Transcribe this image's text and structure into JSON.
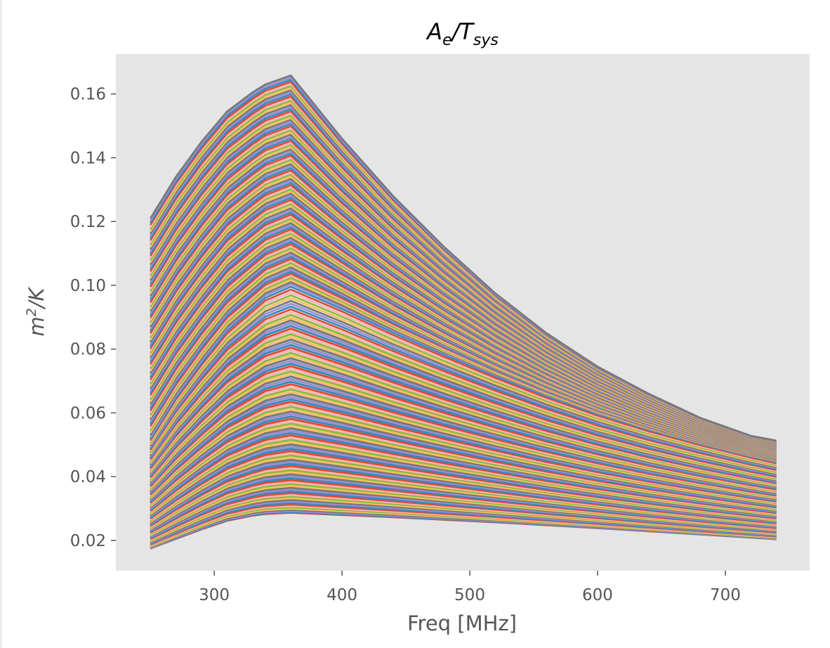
{
  "chart_data": {
    "type": "line",
    "title_main": "A",
    "title_sub_1": "e",
    "title_mid": "/T",
    "title_sub_2": "sys",
    "xlabel": "Freq [MHz]",
    "ylabel_main": "m",
    "ylabel_sup": "2",
    "ylabel_rest": "/K",
    "xlim": [
      223,
      766
    ],
    "ylim": [
      0.0105,
      0.1725
    ],
    "xticks": [
      300,
      400,
      500,
      600,
      700
    ],
    "xtick_labels": [
      "300",
      "400",
      "500",
      "600",
      "700"
    ],
    "yticks": [
      0.02,
      0.04,
      0.06,
      0.08,
      0.1,
      0.12,
      0.14,
      0.16
    ],
    "ytick_labels": [
      "0.02",
      "0.04",
      "0.06",
      "0.08",
      "0.10",
      "0.12",
      "0.14",
      "0.16"
    ],
    "grid": false,
    "background_color": "#E5E5E5",
    "colors": [
      "#E24A33",
      "#348ABD",
      "#988ED5",
      "#777777",
      "#FBC15E",
      "#8EBA42",
      "#FFB5B8"
    ],
    "x": [
      250,
      270,
      290,
      310,
      330,
      340,
      360,
      400,
      440,
      480,
      520,
      560,
      600,
      640,
      680,
      720,
      740
    ],
    "series_count": 200,
    "description": "200 curves, one per configuration; each rises from 250 MHz to a peak then decays toward 740 MHz",
    "representative_series": [
      {
        "label": "lowest",
        "values": [
          0.0175,
          0.0205,
          0.0235,
          0.0262,
          0.0278,
          0.0283,
          0.0287,
          0.028,
          0.0273,
          0.0265,
          0.0257,
          0.0248,
          0.0239,
          0.0229,
          0.0219,
          0.0209,
          0.0204
        ]
      },
      {
        "label": "mid",
        "values": [
          0.052,
          0.065,
          0.076,
          0.086,
          0.093,
          0.0965,
          0.1,
          0.093,
          0.0855,
          0.0785,
          0.0718,
          0.0655,
          0.0598,
          0.0548,
          0.0504,
          0.0464,
          0.0446
        ]
      },
      {
        "label": "highest",
        "values": [
          0.121,
          0.134,
          0.145,
          0.1545,
          0.1605,
          0.163,
          0.1658,
          0.146,
          0.128,
          0.112,
          0.0975,
          0.085,
          0.0745,
          0.066,
          0.0585,
          0.0528,
          0.0513
        ]
      }
    ]
  }
}
